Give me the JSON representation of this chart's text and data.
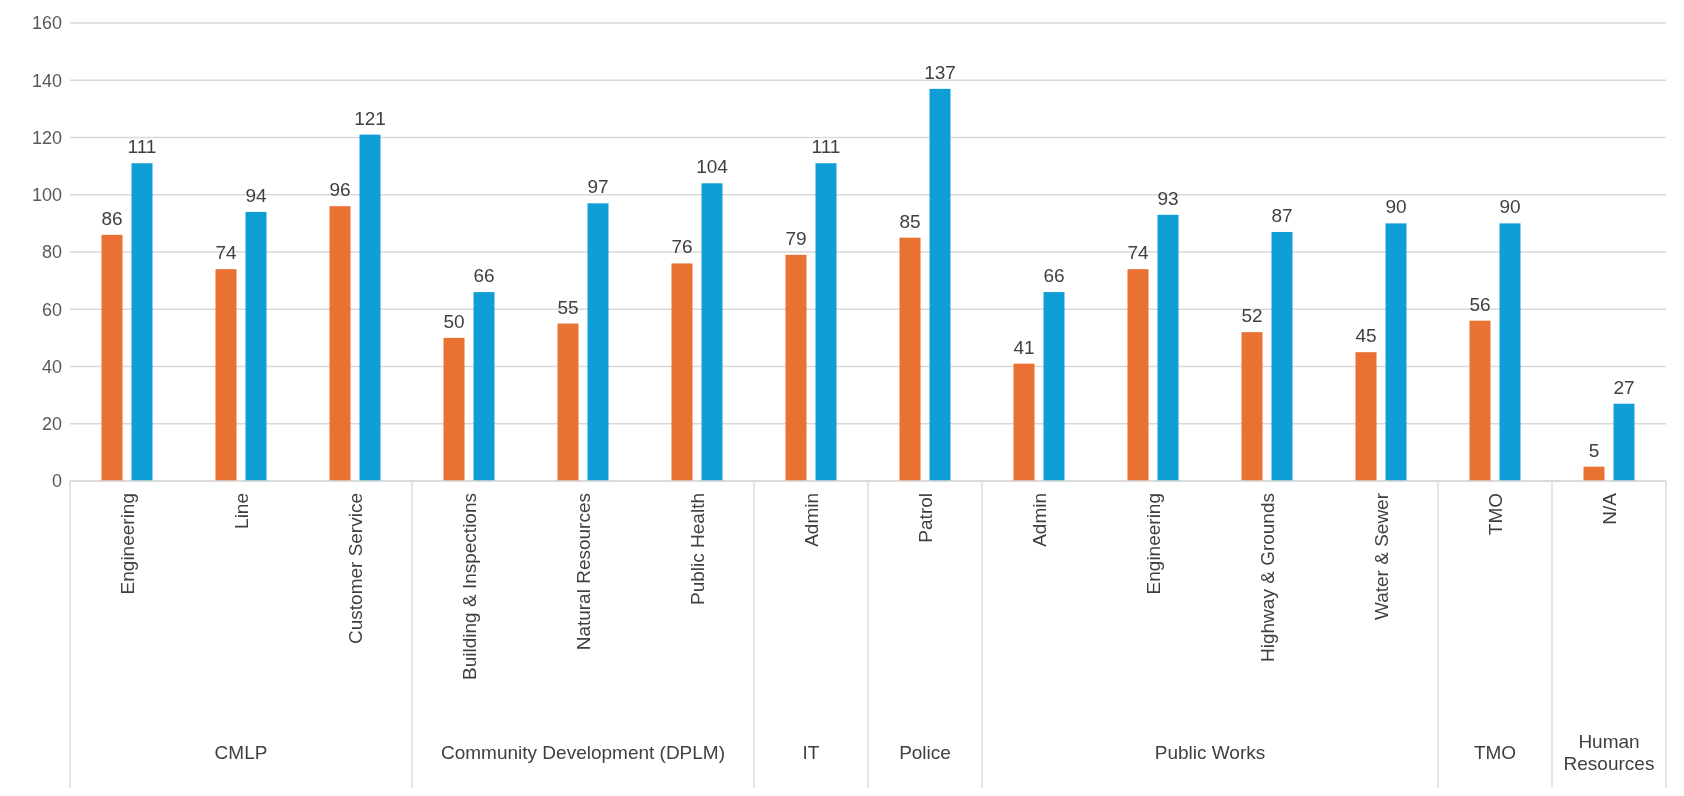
{
  "chart_data": {
    "type": "bar",
    "categories": [
      "Engineering",
      "Line",
      "Customer Service",
      "Building & Inspections",
      "Natural Resources",
      "Public Health",
      "Admin",
      "Patrol",
      "Admin",
      "Engineering",
      "Highway & Grounds",
      "Water & Sewer",
      "TMO",
      "N/A"
    ],
    "series": [
      {
        "color": "#e97132",
        "values": [
          86,
          74,
          96,
          50,
          55,
          76,
          79,
          85,
          41,
          74,
          52,
          45,
          56,
          5
        ]
      },
      {
        "color": "#0f9ed5",
        "values": [
          111,
          94,
          121,
          66,
          97,
          104,
          111,
          137,
          66,
          93,
          87,
          90,
          90,
          27
        ]
      }
    ],
    "ylim": [
      0,
      160
    ],
    "yticks": [
      0,
      20,
      40,
      60,
      80,
      100,
      120,
      140,
      160
    ],
    "grid": "y",
    "data_labels": true,
    "annotations": [
      "CMLP",
      "Community Development (DPLM)",
      "IT",
      "Police",
      "Public Works",
      "TMO",
      "Human Resources"
    ]
  }
}
